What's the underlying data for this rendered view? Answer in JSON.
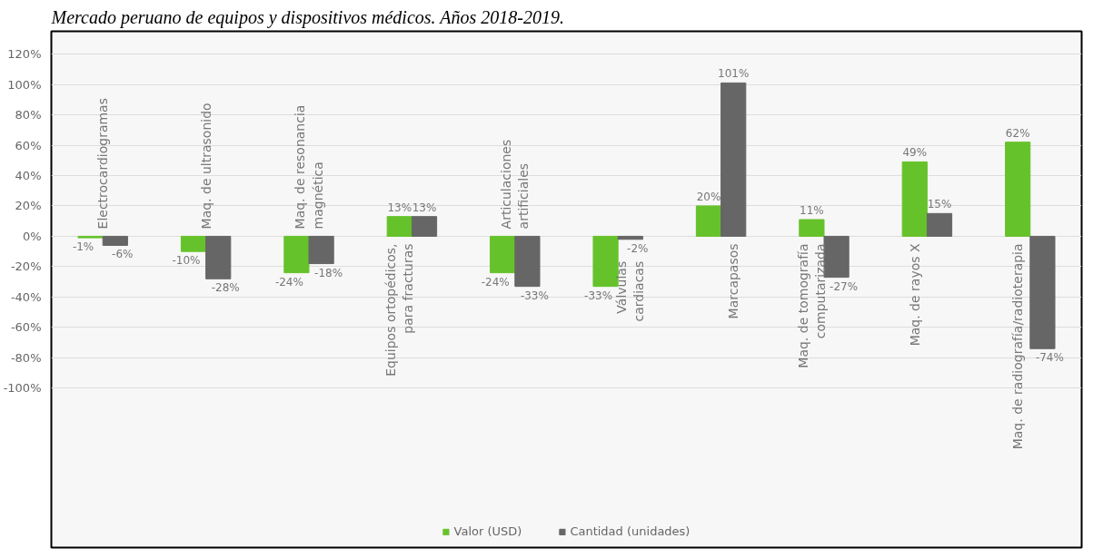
{
  "chart_data": {
    "type": "bar",
    "title": "Mercado peruano de equipos y dispositivos médicos. Años 2018-2019.",
    "categories": [
      "Electrocardiogramas",
      "Maq. de ultrasonido",
      "Maq. de resonancia\nmagnética",
      "Equipos ortopédicos,\npara fracturas",
      "Articulaciones\nartificiales",
      "Válvulas\ncardiacas",
      "Marcapasos",
      "Maq. de tomografía\ncomputarizada",
      "Maq. de rayos X",
      "Maq. de radiografía/radioterapia"
    ],
    "series": [
      {
        "name": "Valor (USD)",
        "color": "#66c22b",
        "values": [
          -1,
          -10,
          -24,
          13,
          -24,
          -33,
          20,
          11,
          49,
          62
        ],
        "value_labels": [
          "-1%",
          "-10%",
          "-24%",
          "13%",
          "-24%",
          "-33%",
          "20%",
          "11%",
          "49%",
          "62%"
        ]
      },
      {
        "name": "Cantidad (unidades)",
        "color": "#666666",
        "values": [
          -6,
          -28,
          -18,
          13,
          -33,
          -2,
          101,
          -27,
          15,
          -74
        ],
        "value_labels": [
          "-6%",
          "-28%",
          "-18%",
          "13%",
          "-33%",
          "-2%",
          "101%",
          "-27%",
          "15%",
          "-74%"
        ]
      }
    ],
    "ylim": [
      -205,
      135
    ],
    "yticks": [
      {
        "value": -100,
        "label": "-100%"
      },
      {
        "value": -80,
        "label": "-80%"
      },
      {
        "value": -60,
        "label": "-60%"
      },
      {
        "value": -40,
        "label": "-40%"
      },
      {
        "value": -20,
        "label": "-20%"
      },
      {
        "value": 0,
        "label": "0%"
      },
      {
        "value": 20,
        "label": "20%"
      },
      {
        "value": 40,
        "label": "40%"
      },
      {
        "value": 60,
        "label": "60%"
      },
      {
        "value": 80,
        "label": "80%"
      },
      {
        "value": 100,
        "label": "100%"
      },
      {
        "value": 120,
        "label": "120%"
      }
    ],
    "grid": "y",
    "legend": "bottom"
  }
}
